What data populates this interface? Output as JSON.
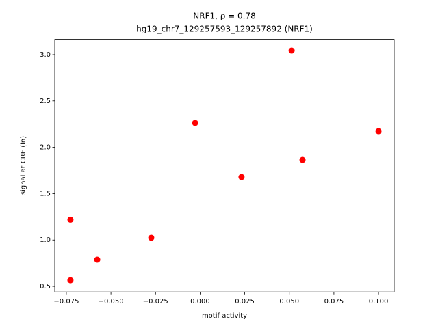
{
  "chart_data": {
    "type": "scatter",
    "title": "NRF1, ρ = 0.78",
    "subtitle": "hg19_chr7_129257593_129257892 (NRF1)",
    "x_label": "motif activity",
    "y_label": "signal at CRE (ln)",
    "color": "#ff0000",
    "grid": false,
    "x": [
      -0.0727,
      -0.0727,
      -0.0577,
      -0.0274,
      -0.0028,
      0.0232,
      0.0513,
      0.0574,
      0.1
    ],
    "values": [
      1.22,
      0.566,
      0.788,
      1.024,
      2.263,
      1.68,
      3.044,
      1.864,
      2.174
    ],
    "xlim": [
      -0.0815,
      0.1088
    ],
    "ylim": [
      0.44,
      3.165
    ],
    "xticks": [
      {
        "value": -0.075,
        "label": "−0.075"
      },
      {
        "value": -0.05,
        "label": "−0.050"
      },
      {
        "value": -0.025,
        "label": "−0.025"
      },
      {
        "value": 0,
        "label": "0.000"
      },
      {
        "value": 0.025,
        "label": "0.025"
      },
      {
        "value": 0.05,
        "label": "0.050"
      },
      {
        "value": 0.075,
        "label": "0.075"
      },
      {
        "value": 0.1,
        "label": "0.100"
      }
    ],
    "yticks": [
      0.5,
      {
        "value": 1,
        "label": "1.0"
      },
      1.5,
      {
        "value": 2,
        "label": "2.0"
      },
      2.5,
      {
        "value": 3,
        "label": "3.0"
      }
    ]
  }
}
